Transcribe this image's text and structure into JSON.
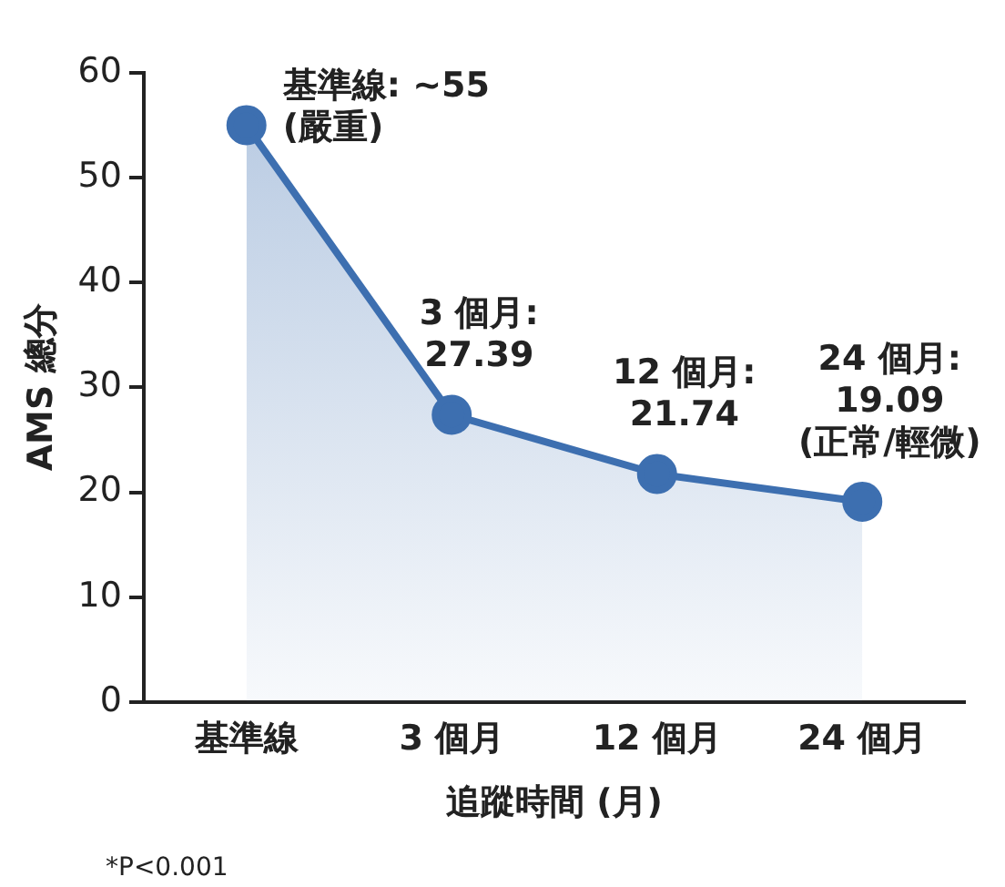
{
  "chart_data": {
    "type": "area",
    "xlabel": "追蹤時間 (月)",
    "ylabel": "AMS 總分",
    "categories": [
      "基準線",
      "3 個月",
      "12 個月",
      "24 個月"
    ],
    "series": [
      {
        "color": "#3d6fb0",
        "values": [
          55,
          27.39,
          21.74,
          19.09
        ],
        "value_labels": [
          "基準線: ~55\n(嚴重)",
          "3 個月:\n27.39",
          "12 個月:\n21.74",
          "24 個月:\n19.09\n(正常/輕微)"
        ]
      }
    ],
    "ylim": [
      0,
      60
    ],
    "yticks": [
      0,
      10,
      20,
      30,
      40,
      50,
      60
    ],
    "grid": false,
    "legend": false,
    "marker": "circle",
    "line_style": "solid",
    "annotations": [
      "*P<0.001"
    ]
  }
}
